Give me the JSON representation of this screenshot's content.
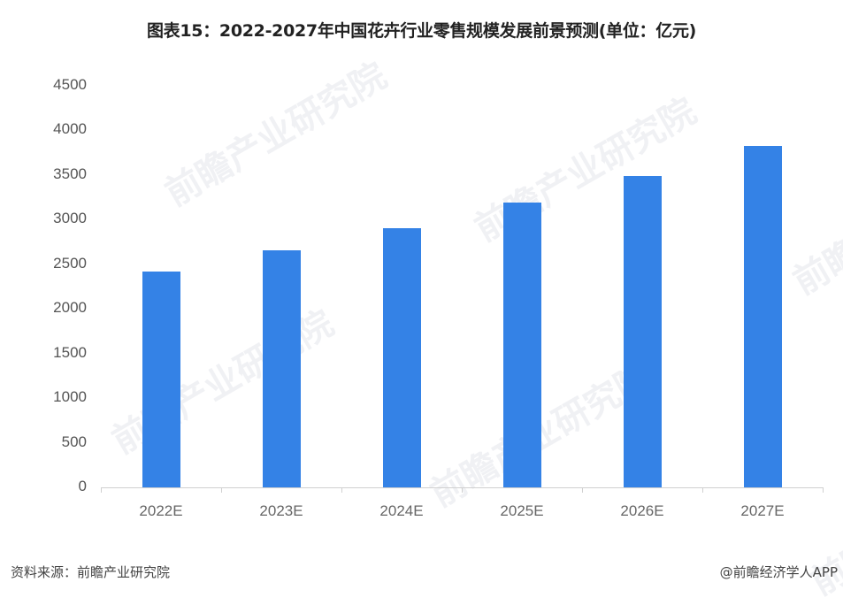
{
  "title": "图表15：2022-2027年中国花卉行业零售规模发展前景预测(单位：亿元)",
  "footer": {
    "source": "资料来源：前瞻产业研究院",
    "credit": "@前瞻经济学人APP"
  },
  "watermark": "前瞻产业研究院",
  "colors": {
    "bar": "#3482E6",
    "axis": "#D0D0D0"
  },
  "chart_data": {
    "type": "bar",
    "title": "图表15：2022-2027年中国花卉行业零售规模发展前景预测(单位：亿元)",
    "xlabel": "",
    "ylabel": "亿元",
    "categories": [
      "2022E",
      "2023E",
      "2024E",
      "2025E",
      "2026E",
      "2027E"
    ],
    "values": [
      2420,
      2655,
      2905,
      3190,
      3490,
      3825
    ],
    "ylim": [
      0,
      4500
    ],
    "yticks": [
      0,
      500,
      1000,
      1500,
      2000,
      2500,
      3000,
      3500,
      4000,
      4500
    ],
    "grid": false,
    "legend": null
  }
}
